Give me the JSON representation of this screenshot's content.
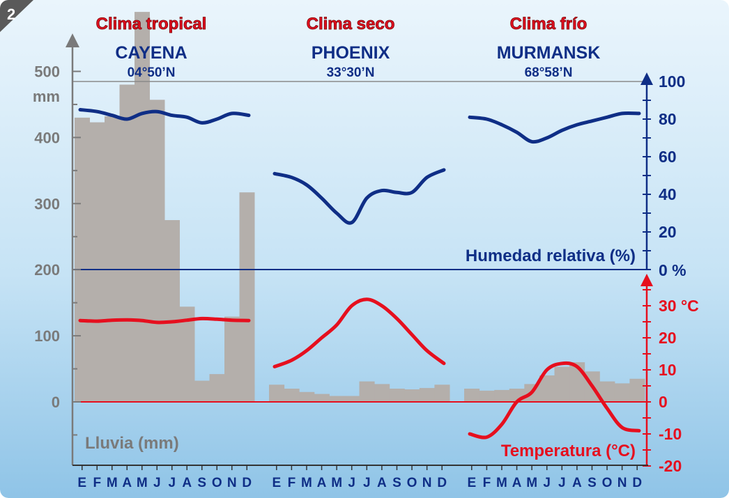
{
  "figure_number": "2",
  "chart_data": {
    "type": "climograph",
    "stations": [
      {
        "climate": "Clima tropical",
        "city": "CAYENA",
        "latitude": "04°50’N",
        "months": [
          "E",
          "F",
          "M",
          "A",
          "M",
          "J",
          "J",
          "A",
          "S",
          "O",
          "N",
          "D"
        ],
        "precipitation_mm": [
          430,
          423,
          432,
          480,
          590,
          457,
          275,
          144,
          32,
          42,
          129,
          317
        ],
        "temperature_c": [
          25.4,
          25.2,
          25.5,
          25.6,
          25.4,
          24.8,
          25.0,
          25.5,
          26.0,
          25.8,
          25.5,
          25.4
        ],
        "humidity_pct": [
          85,
          84,
          82,
          80,
          83,
          84,
          82,
          81,
          78,
          80,
          83,
          82
        ]
      },
      {
        "climate": "Clima seco",
        "city": "PHOENIX",
        "latitude": "33°30’N",
        "months": [
          "E",
          "F",
          "M",
          "A",
          "M",
          "J",
          "J",
          "A",
          "S",
          "O",
          "N",
          "D"
        ],
        "precipitation_mm": [
          26,
          20,
          15,
          12,
          9,
          9,
          31,
          27,
          20,
          19,
          21,
          26
        ],
        "temperature_c": [
          11,
          13,
          16,
          20,
          24,
          30,
          32,
          30,
          26,
          21,
          16,
          12
        ],
        "humidity_pct": [
          51,
          49,
          45,
          38,
          30,
          25,
          38,
          42,
          41,
          41,
          49,
          53
        ]
      },
      {
        "climate": "Clima frío",
        "city": "MURMANSK",
        "latitude": "68°58’N",
        "months": [
          "E",
          "F",
          "M",
          "A",
          "M",
          "J",
          "J",
          "A",
          "S",
          "O",
          "N",
          "D"
        ],
        "precipitation_mm": [
          20,
          17,
          18,
          20,
          27,
          40,
          53,
          60,
          46,
          31,
          28,
          35
        ],
        "temperature_c": [
          -10,
          -11,
          -7,
          0,
          3,
          10,
          12,
          11,
          5,
          -2,
          -8,
          -9
        ],
        "humidity_pct": [
          81,
          80,
          77,
          73,
          68,
          70,
          74,
          77,
          79,
          81,
          83,
          83
        ]
      }
    ],
    "left_axis": {
      "label": "Lluvia (mm)",
      "unit": "mm",
      "range": [
        -96,
        500
      ],
      "ticks": [
        0,
        100,
        200,
        300,
        400,
        500
      ]
    },
    "right_axis_humidity": {
      "label": "Humedad relativa (%)",
      "range": [
        0,
        100
      ],
      "ticks": [
        0,
        20,
        40,
        60,
        80,
        100
      ],
      "zero_label": "0 %"
    },
    "right_axis_temperature": {
      "label": "Temperatura (°C)",
      "range": [
        -20,
        40
      ],
      "ticks": [
        -20,
        -10,
        0,
        10,
        20,
        30
      ],
      "top_label": "30 °C"
    },
    "colors": {
      "precipitation": "#b4afab",
      "temperature": "#e60f1e",
      "humidity": "#0f2e86",
      "rain_axis": "#7a7a7a",
      "title_red": "#e0101e",
      "background_top": "#eaf5fc",
      "background_bottom": "#8fc4e7"
    },
    "grid": false
  }
}
